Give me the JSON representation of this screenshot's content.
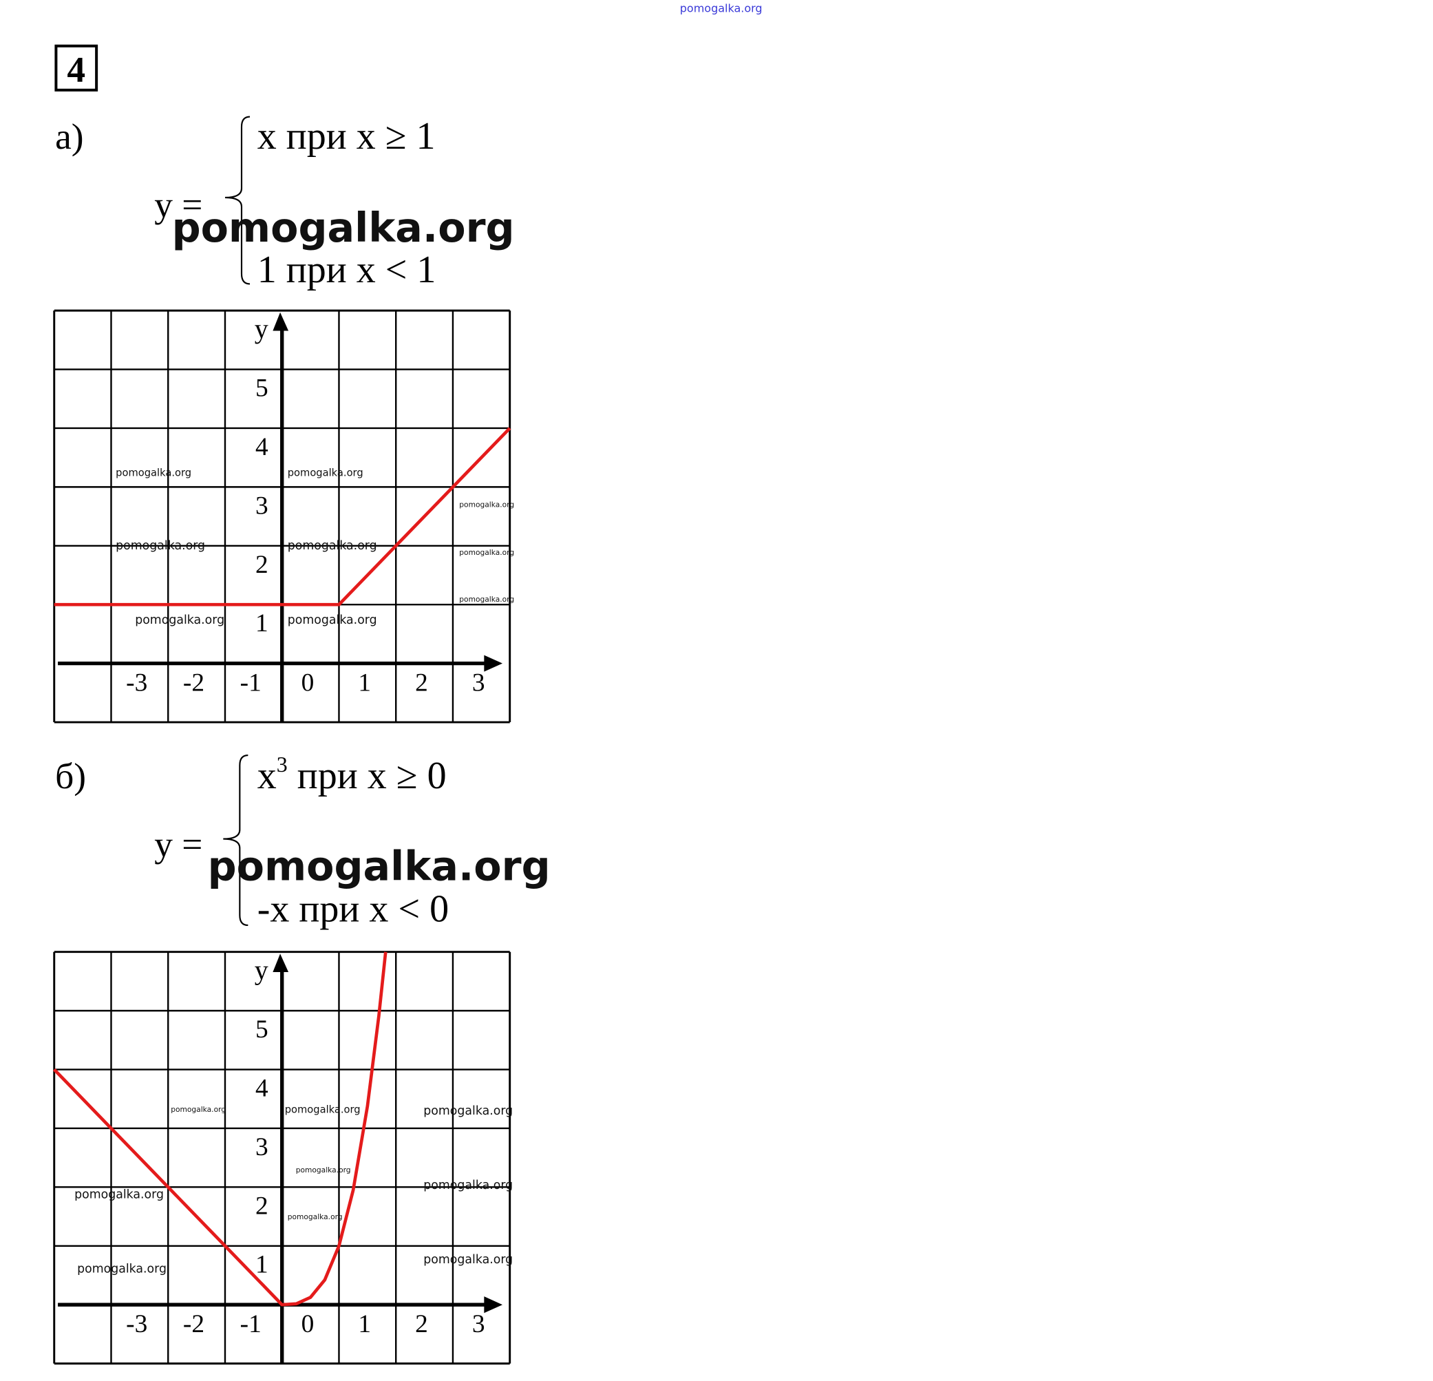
{
  "header": {
    "site_mark": "pomogalka.org",
    "site_mark_color": "#3a3ad8"
  },
  "task": {
    "number": "4"
  },
  "watermark_text": "pomogalka.org",
  "parts": [
    {
      "label": "а)",
      "lhs": "y =",
      "cases": [
        {
          "expr": "x",
          "sup": "",
          "cond": " при x ≥ 1"
        },
        {
          "expr": "1",
          "sup": "",
          "cond": " при x < 1"
        }
      ]
    },
    {
      "label": "б)",
      "lhs": "y =",
      "cases": [
        {
          "expr": "x",
          "sup": "3",
          "cond": " при x ≥ 0"
        },
        {
          "expr": "-x",
          "sup": "",
          "cond": " при x < 0"
        }
      ]
    }
  ],
  "chart_data": [
    {
      "type": "line",
      "title": "",
      "xlabel": "",
      "ylabel": "y",
      "xlim": [
        -4,
        4
      ],
      "ylim": [
        -1,
        6
      ],
      "grid": true,
      "x_tick_labels": [
        "-3",
        "-2",
        "-1",
        "0",
        "1",
        "2",
        "3"
      ],
      "y_tick_labels": [
        "1",
        "2",
        "3",
        "4",
        "5"
      ],
      "line_color": "#e41b1b",
      "series": [
        {
          "points": [
            [
              -4,
              1
            ],
            [
              1,
              1
            ],
            [
              4,
              4
            ]
          ]
        }
      ]
    },
    {
      "type": "line",
      "title": "",
      "xlabel": "",
      "ylabel": "y",
      "xlim": [
        -4,
        4
      ],
      "ylim": [
        -1,
        6
      ],
      "grid": true,
      "x_tick_labels": [
        "-3",
        "-2",
        "-1",
        "0",
        "1",
        "2",
        "3"
      ],
      "y_tick_labels": [
        "1",
        "2",
        "3",
        "4",
        "5"
      ],
      "line_color": "#e41b1b",
      "series": [
        {
          "points": [
            [
              -4,
              4
            ],
            [
              -3,
              3
            ],
            [
              -2,
              2
            ],
            [
              -1,
              1
            ],
            [
              0,
              0
            ],
            [
              0.25,
              0.016
            ],
            [
              0.5,
              0.125
            ],
            [
              0.75,
              0.42
            ],
            [
              1,
              1
            ],
            [
              1.25,
              1.95
            ],
            [
              1.5,
              3.375
            ],
            [
              1.7,
              4.91
            ],
            [
              1.82,
              6
            ]
          ]
        }
      ]
    }
  ]
}
